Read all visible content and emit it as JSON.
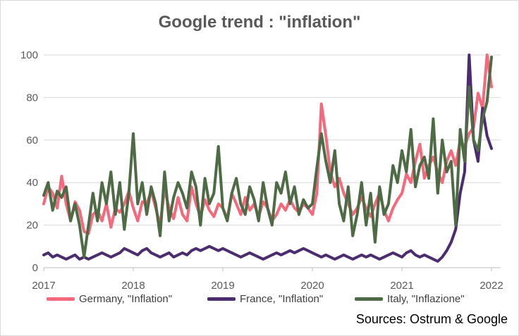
{
  "chart_data": {
    "type": "line",
    "title": "Google trend : \"inflation\"",
    "ylim": [
      0,
      100
    ],
    "yticks": [
      0,
      20,
      40,
      60,
      80,
      100
    ],
    "xlim": [
      2017.0,
      2022.0
    ],
    "xticks": [
      "2017",
      "2018",
      "2019",
      "2020",
      "2021",
      "2022"
    ],
    "grid": "horizontal",
    "legend_position": "bottom",
    "source": "Sources: Ostrum & Google",
    "series": [
      {
        "name": "Germany, \"Inflation\"",
        "color": "#f4697c",
        "x": [
          2017.0,
          2017.05,
          2017.1,
          2017.15,
          2017.2,
          2017.25,
          2017.3,
          2017.35,
          2017.4,
          2017.45,
          2017.5,
          2017.55,
          2017.6,
          2017.65,
          2017.7,
          2017.75,
          2017.8,
          2017.85,
          2017.9,
          2017.95,
          2018.0,
          2018.05,
          2018.1,
          2018.15,
          2018.2,
          2018.25,
          2018.3,
          2018.35,
          2018.4,
          2018.45,
          2018.5,
          2018.55,
          2018.6,
          2018.65,
          2018.7,
          2018.75,
          2018.8,
          2018.85,
          2018.9,
          2018.95,
          2019.0,
          2019.05,
          2019.1,
          2019.15,
          2019.2,
          2019.25,
          2019.3,
          2019.35,
          2019.4,
          2019.45,
          2019.5,
          2019.55,
          2019.6,
          2019.65,
          2019.7,
          2019.75,
          2019.8,
          2019.85,
          2019.9,
          2019.95,
          2020.0,
          2020.05,
          2020.1,
          2020.15,
          2020.2,
          2020.25,
          2020.3,
          2020.35,
          2020.4,
          2020.45,
          2020.5,
          2020.55,
          2020.6,
          2020.65,
          2020.7,
          2020.75,
          2020.8,
          2020.85,
          2020.9,
          2020.95,
          2021.0,
          2021.05,
          2021.1,
          2021.15,
          2021.2,
          2021.25,
          2021.3,
          2021.35,
          2021.4,
          2021.45,
          2021.5,
          2021.55,
          2021.6,
          2021.65,
          2021.7,
          2021.75,
          2021.8,
          2021.85,
          2021.9,
          2021.95,
          2022.0
        ],
        "values": [
          30,
          38,
          35,
          28,
          43,
          30,
          22,
          31,
          27,
          17,
          16,
          25,
          27,
          22,
          30,
          19,
          28,
          26,
          30,
          36,
          28,
          22,
          31,
          30,
          36,
          28,
          20,
          37,
          28,
          23,
          33,
          25,
          22,
          38,
          30,
          24,
          32,
          27,
          24,
          30,
          28,
          23,
          35,
          30,
          25,
          33,
          27,
          30,
          24,
          31,
          28,
          22,
          25,
          30,
          27,
          32,
          28,
          26,
          30,
          28,
          25,
          35,
          77,
          62,
          45,
          38,
          42,
          35,
          30,
          25,
          28,
          33,
          28,
          24,
          30,
          35,
          27,
          22,
          28,
          32,
          35,
          44,
          40,
          50,
          58,
          42,
          48,
          52,
          45,
          40,
          50,
          55,
          48,
          60,
          57,
          63,
          66,
          82,
          75,
          100,
          85
        ]
      },
      {
        "name": "France, \"Inflation\"",
        "color": "#4b2c6e",
        "x": [
          2017.0,
          2017.05,
          2017.1,
          2017.15,
          2017.2,
          2017.25,
          2017.3,
          2017.35,
          2017.4,
          2017.45,
          2017.5,
          2017.55,
          2017.6,
          2017.65,
          2017.7,
          2017.75,
          2017.8,
          2017.85,
          2017.9,
          2017.95,
          2018.0,
          2018.05,
          2018.1,
          2018.15,
          2018.2,
          2018.25,
          2018.3,
          2018.35,
          2018.4,
          2018.45,
          2018.5,
          2018.55,
          2018.6,
          2018.65,
          2018.7,
          2018.75,
          2018.8,
          2018.85,
          2018.9,
          2018.95,
          2019.0,
          2019.05,
          2019.1,
          2019.15,
          2019.2,
          2019.25,
          2019.3,
          2019.35,
          2019.4,
          2019.45,
          2019.5,
          2019.55,
          2019.6,
          2019.65,
          2019.7,
          2019.75,
          2019.8,
          2019.85,
          2019.9,
          2019.95,
          2020.0,
          2020.05,
          2020.1,
          2020.15,
          2020.2,
          2020.25,
          2020.3,
          2020.35,
          2020.4,
          2020.45,
          2020.5,
          2020.55,
          2020.6,
          2020.65,
          2020.7,
          2020.75,
          2020.8,
          2020.85,
          2020.9,
          2020.95,
          2021.0,
          2021.05,
          2021.1,
          2021.15,
          2021.2,
          2021.25,
          2021.3,
          2021.35,
          2021.4,
          2021.45,
          2021.5,
          2021.55,
          2021.6,
          2021.65,
          2021.7,
          2021.75,
          2021.8,
          2021.85,
          2021.9,
          2021.95,
          2022.0
        ],
        "values": [
          6,
          7,
          5,
          6,
          5,
          4,
          5,
          6,
          4,
          5,
          4,
          5,
          6,
          7,
          6,
          5,
          6,
          7,
          9,
          8,
          7,
          6,
          8,
          9,
          7,
          6,
          5,
          6,
          7,
          5,
          6,
          7,
          6,
          8,
          9,
          8,
          9,
          10,
          9,
          8,
          9,
          8,
          7,
          6,
          5,
          6,
          7,
          6,
          5,
          4,
          5,
          6,
          7,
          6,
          7,
          8,
          7,
          8,
          9,
          8,
          7,
          6,
          5,
          6,
          5,
          4,
          5,
          6,
          5,
          4,
          5,
          6,
          5,
          6,
          5,
          4,
          5,
          6,
          7,
          6,
          5,
          7,
          8,
          6,
          5,
          6,
          5,
          4,
          3,
          5,
          8,
          12,
          18,
          35,
          45,
          100,
          60,
          50,
          75,
          62,
          56
        ]
      },
      {
        "name": "Italy, \"Inflazione\"",
        "color": "#4e6b45",
        "x": [
          2017.0,
          2017.05,
          2017.1,
          2017.15,
          2017.2,
          2017.25,
          2017.3,
          2017.35,
          2017.4,
          2017.45,
          2017.5,
          2017.55,
          2017.6,
          2017.65,
          2017.7,
          2017.75,
          2017.8,
          2017.85,
          2017.9,
          2017.95,
          2018.0,
          2018.05,
          2018.1,
          2018.15,
          2018.2,
          2018.25,
          2018.3,
          2018.35,
          2018.4,
          2018.45,
          2018.5,
          2018.55,
          2018.6,
          2018.65,
          2018.7,
          2018.75,
          2018.8,
          2018.85,
          2018.9,
          2018.95,
          2019.0,
          2019.05,
          2019.1,
          2019.15,
          2019.2,
          2019.25,
          2019.3,
          2019.35,
          2019.4,
          2019.45,
          2019.5,
          2019.55,
          2019.6,
          2019.65,
          2019.7,
          2019.75,
          2019.8,
          2019.85,
          2019.9,
          2019.95,
          2020.0,
          2020.05,
          2020.1,
          2020.15,
          2020.2,
          2020.25,
          2020.3,
          2020.35,
          2020.4,
          2020.45,
          2020.5,
          2020.55,
          2020.6,
          2020.65,
          2020.7,
          2020.75,
          2020.8,
          2020.85,
          2020.9,
          2020.95,
          2021.0,
          2021.05,
          2021.1,
          2021.15,
          2021.2,
          2021.25,
          2021.3,
          2021.35,
          2021.4,
          2021.45,
          2021.5,
          2021.55,
          2021.6,
          2021.65,
          2021.7,
          2021.75,
          2021.8,
          2021.85,
          2021.9,
          2021.95,
          2022.0
        ],
        "values": [
          34,
          40,
          27,
          36,
          33,
          38,
          22,
          30,
          20,
          5,
          20,
          35,
          22,
          40,
          30,
          45,
          25,
          40,
          18,
          35,
          63,
          30,
          40,
          25,
          38,
          30,
          15,
          45,
          22,
          33,
          40,
          35,
          28,
          45,
          38,
          20,
          42,
          30,
          35,
          57,
          28,
          22,
          35,
          42,
          30,
          25,
          38,
          32,
          22,
          40,
          28,
          20,
          40,
          35,
          45,
          30,
          38,
          25,
          32,
          28,
          30,
          47,
          63,
          50,
          40,
          55,
          30,
          22,
          38,
          15,
          25,
          40,
          20,
          35,
          12,
          38,
          25,
          30,
          48,
          40,
          55,
          45,
          65,
          38,
          48,
          52,
          42,
          70,
          35,
          60,
          45,
          50,
          20,
          65,
          50,
          85,
          60,
          55,
          70,
          78,
          99
        ]
      }
    ]
  }
}
